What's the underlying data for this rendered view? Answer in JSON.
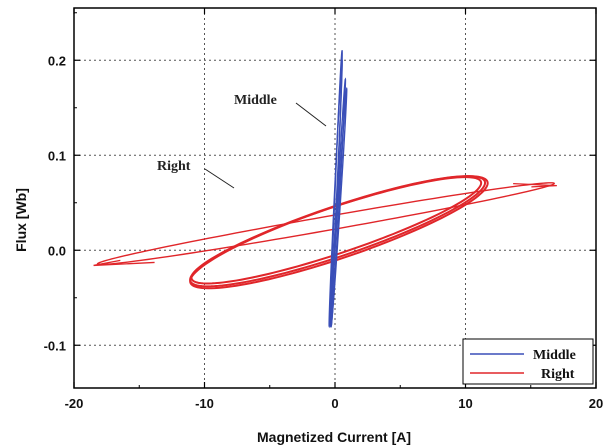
{
  "chart_data": {
    "type": "line",
    "title": "",
    "xlabel": "Magnetized Current [A]",
    "ylabel": "Flux [Wb]",
    "xlim": [
      -20,
      20
    ],
    "ylim": [
      -0.145,
      0.255
    ],
    "xticks": [
      -20,
      -10,
      0,
      10,
      20
    ],
    "xtick_labels": [
      "-20",
      "-10",
      "0",
      "10",
      "20"
    ],
    "yticks": [
      -0.1,
      0.0,
      0.1,
      0.2
    ],
    "ytick_labels": [
      "-0.1",
      "0.0",
      "0.1",
      "0.2"
    ],
    "grid": true,
    "legend_position": "bottom-right",
    "annotations": [
      {
        "text": "Middle",
        "series": "Middle"
      },
      {
        "text": "Right",
        "series": "Right"
      }
    ],
    "series": [
      {
        "name": "Middle",
        "color": "#3a4fb8",
        "loops": [
          {
            "cx": 0.1,
            "cy": 0.065,
            "ax": 0.45,
            "ay": 0.145,
            "tilt": 0.98,
            "rot": 0.0
          },
          {
            "cx": 0.25,
            "cy": 0.05,
            "ax": 0.55,
            "ay": 0.13,
            "tilt": 0.99,
            "rot": 0.35
          },
          {
            "cx": 0.05,
            "cy": 0.06,
            "ax": 0.5,
            "ay": 0.14,
            "tilt": 0.985,
            "rot": -0.2
          },
          {
            "cx": 0.3,
            "cy": 0.045,
            "ax": 0.6,
            "ay": 0.125,
            "tilt": 0.99,
            "rot": 0.6
          }
        ]
      },
      {
        "name": "Right",
        "color": "#e0262a",
        "loops": [
          {
            "cx": 0.2,
            "cy": 0.02,
            "ax": 11.3,
            "ay": 0.058,
            "tilt": 0.88,
            "rot": 0.0
          },
          {
            "cx": 0.1,
            "cy": 0.021,
            "ax": 11.1,
            "ay": 0.056,
            "tilt": 0.89,
            "rot": 0.2
          },
          {
            "cx": 0.3,
            "cy": 0.019,
            "ax": 11.4,
            "ay": 0.059,
            "tilt": 0.875,
            "rot": -0.15
          },
          {
            "cx": -0.7,
            "cy": 0.028,
            "ax": 17.5,
            "ay": 0.043,
            "tilt": 0.985,
            "rot": 0.0
          }
        ],
        "tips": [
          [
            -18.5,
            -0.016
          ],
          [
            17.0,
            0.068
          ]
        ]
      }
    ]
  }
}
